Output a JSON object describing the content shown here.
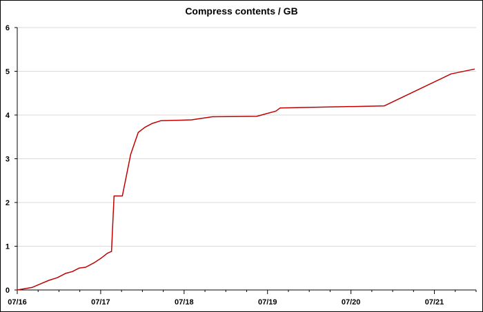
{
  "chart_data": {
    "type": "line",
    "title": "Compress contents / GB",
    "xlabel": "",
    "ylabel": "",
    "x_tick_labels": [
      "07/16",
      "07/17",
      "07/18",
      "07/19",
      "07/20",
      "07/21"
    ],
    "y_tick_labels": [
      "0",
      "1",
      "2",
      "3",
      "4",
      "5",
      "6"
    ],
    "ylim": [
      0,
      6
    ],
    "xlim": [
      0,
      5.5
    ],
    "grid": "horizontal",
    "legend": "none",
    "series": [
      {
        "color": "#c00000",
        "x": [
          0.0,
          0.18,
          0.28,
          0.38,
          0.48,
          0.58,
          0.66,
          0.74,
          0.82,
          0.92,
          1.0,
          1.08,
          1.13,
          1.16,
          1.26,
          1.36,
          1.45,
          1.53,
          1.62,
          1.72,
          2.09,
          2.34,
          2.87,
          3.1,
          3.15,
          4.4,
          5.2,
          5.48
        ],
        "y": [
          0.0,
          0.06,
          0.14,
          0.22,
          0.28,
          0.38,
          0.42,
          0.5,
          0.52,
          0.62,
          0.72,
          0.84,
          0.88,
          2.15,
          2.15,
          3.1,
          3.6,
          3.72,
          3.81,
          3.87,
          3.89,
          3.96,
          3.97,
          4.09,
          4.16,
          4.21,
          4.94,
          5.05
        ]
      }
    ]
  }
}
